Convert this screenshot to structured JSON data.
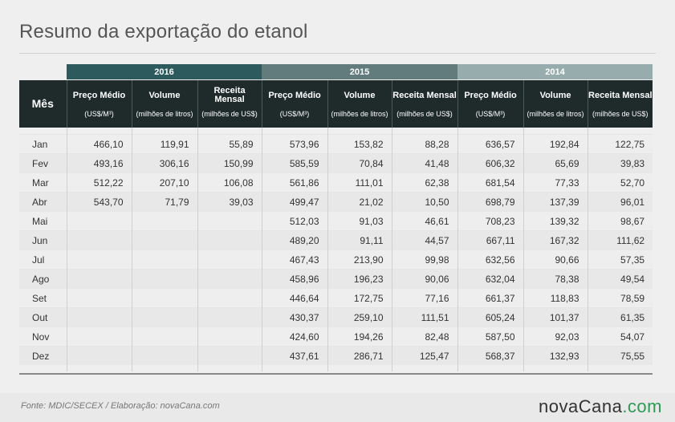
{
  "title": "Resumo da exportação do etanol",
  "footer": {
    "source": "Fonte: MDIC/SECEX / Elaboração: novaCana.com",
    "brand_main": "novaCana",
    "brand_dot": ".com"
  },
  "colors": {
    "year_2016": "#2d5a5c",
    "year_2015": "#627b7c",
    "year_2014": "#97acac",
    "header_dark": "#1f2b2b",
    "brand_green": "#2b9a54"
  },
  "chart_data": {
    "type": "table",
    "row_header": "Mês",
    "years": [
      "2016",
      "2015",
      "2014"
    ],
    "columns": [
      {
        "label": "Preço Médio",
        "unit": "(US$/M³)"
      },
      {
        "label": "Volume",
        "unit": "(milhões de litros)"
      },
      {
        "label": "Receita Mensal",
        "unit": "(milhões de US$)"
      }
    ],
    "rows": [
      {
        "month": "Jan",
        "values": [
          "466,10",
          "119,91",
          "55,89",
          "573,96",
          "153,82",
          "88,28",
          "636,57",
          "192,84",
          "122,75"
        ]
      },
      {
        "month": "Fev",
        "values": [
          "493,16",
          "306,16",
          "150,99",
          "585,59",
          "70,84",
          "41,48",
          "606,32",
          "65,69",
          "39,83"
        ]
      },
      {
        "month": "Mar",
        "values": [
          "512,22",
          "207,10",
          "106,08",
          "561,86",
          "111,01",
          "62,38",
          "681,54",
          "77,33",
          "52,70"
        ]
      },
      {
        "month": "Abr",
        "values": [
          "543,70",
          "71,79",
          "39,03",
          "499,47",
          "21,02",
          "10,50",
          "698,79",
          "137,39",
          "96,01"
        ]
      },
      {
        "month": "Mai",
        "values": [
          "",
          "",
          "",
          "512,03",
          "91,03",
          "46,61",
          "708,23",
          "139,32",
          "98,67"
        ]
      },
      {
        "month": "Jun",
        "values": [
          "",
          "",
          "",
          "489,20",
          "91,11",
          "44,57",
          "667,11",
          "167,32",
          "111,62"
        ]
      },
      {
        "month": "Jul",
        "values": [
          "",
          "",
          "",
          "467,43",
          "213,90",
          "99,98",
          "632,56",
          "90,66",
          "57,35"
        ]
      },
      {
        "month": "Ago",
        "values": [
          "",
          "",
          "",
          "458,96",
          "196,23",
          "90,06",
          "632,04",
          "78,38",
          "49,54"
        ]
      },
      {
        "month": "Set",
        "values": [
          "",
          "",
          "",
          "446,64",
          "172,75",
          "77,16",
          "661,37",
          "118,83",
          "78,59"
        ]
      },
      {
        "month": "Out",
        "values": [
          "",
          "",
          "",
          "430,37",
          "259,10",
          "111,51",
          "605,24",
          "101,37",
          "61,35"
        ]
      },
      {
        "month": "Nov",
        "values": [
          "",
          "",
          "",
          "424,60",
          "194,26",
          "82,48",
          "587,50",
          "92,03",
          "54,07"
        ]
      },
      {
        "month": "Dez",
        "values": [
          "",
          "",
          "",
          "437,61",
          "286,71",
          "125,47",
          "568,37",
          "132,93",
          "75,55"
        ]
      }
    ]
  }
}
